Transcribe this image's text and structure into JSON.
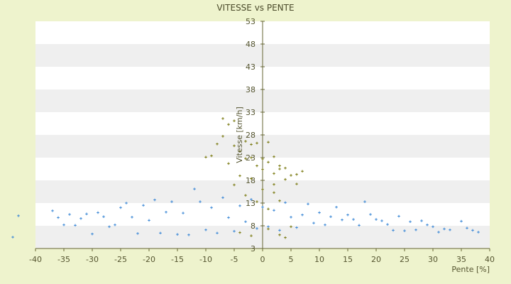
{
  "chart_data": {
    "type": "scatter",
    "title": "VITESSE vs PENTE",
    "xlabel": "Pente [%]",
    "ylabel": "Vitesse [km/h]",
    "xlim": [
      -40,
      40
    ],
    "ylim": [
      3,
      53
    ],
    "x_ticks": [
      -40,
      -35,
      -30,
      -25,
      -20,
      -15,
      -10,
      -5,
      0,
      5,
      10,
      15,
      20,
      25,
      30,
      35,
      40
    ],
    "y_ticks": [
      3,
      8,
      13,
      18,
      23,
      28,
      33,
      38,
      43,
      48,
      53
    ],
    "grid": "horizontal alternating bands",
    "legend": "none",
    "series": [
      {
        "color": "#3a87d6",
        "marker": "plus",
        "points": [
          [
            -44,
            5.5
          ],
          [
            -43,
            10.2
          ],
          [
            -37,
            11.3
          ],
          [
            -36,
            9.8
          ],
          [
            -35,
            8.2
          ],
          [
            -34,
            10.5
          ],
          [
            -33,
            8.1
          ],
          [
            -32,
            9.6
          ],
          [
            -31,
            10.6
          ],
          [
            -30,
            6.2
          ],
          [
            -29,
            10.9
          ],
          [
            -28,
            10.0
          ],
          [
            -27,
            7.8
          ],
          [
            -26,
            8.2
          ],
          [
            -25,
            12.0
          ],
          [
            -24,
            13.0
          ],
          [
            -23,
            9.9
          ],
          [
            -22,
            6.3
          ],
          [
            -21,
            12.5
          ],
          [
            -20,
            9.2
          ],
          [
            -19,
            13.7
          ],
          [
            -18,
            6.4
          ],
          [
            -17,
            11.0
          ],
          [
            -16,
            13.3
          ],
          [
            -15,
            6.1
          ],
          [
            -14,
            10.8
          ],
          [
            -13,
            6.0
          ],
          [
            -12,
            16.1
          ],
          [
            -11,
            13.3
          ],
          [
            -10,
            7.1
          ],
          [
            -9,
            12.0
          ],
          [
            -8,
            6.4
          ],
          [
            -7,
            14.2
          ],
          [
            -6,
            9.8
          ],
          [
            -5,
            6.8
          ],
          [
            -4,
            12.4
          ],
          [
            -3,
            8.9
          ],
          [
            -2,
            13.8
          ],
          [
            -1,
            7.4
          ],
          [
            0,
            12.1
          ],
          [
            1,
            7.8
          ],
          [
            2,
            11.4
          ],
          [
            3,
            7.0
          ],
          [
            4,
            13.1
          ],
          [
            5,
            9.9
          ],
          [
            6,
            7.6
          ],
          [
            7,
            10.4
          ],
          [
            8,
            12.8
          ],
          [
            9,
            8.6
          ],
          [
            10,
            10.9
          ],
          [
            11,
            8.2
          ],
          [
            12,
            10.0
          ],
          [
            13,
            12.1
          ],
          [
            14,
            9.3
          ],
          [
            15,
            10.4
          ],
          [
            16,
            9.4
          ],
          [
            17,
            8.1
          ],
          [
            18,
            13.3
          ],
          [
            19,
            10.5
          ],
          [
            20,
            9.4
          ],
          [
            21,
            9.1
          ],
          [
            22,
            8.3
          ],
          [
            23,
            7.0
          ],
          [
            24,
            10.1
          ],
          [
            25,
            6.9
          ],
          [
            26,
            8.9
          ],
          [
            27,
            7.1
          ],
          [
            28,
            9.1
          ],
          [
            29,
            8.2
          ],
          [
            30,
            7.8
          ],
          [
            31,
            6.6
          ],
          [
            32,
            7.3
          ],
          [
            33,
            7.1
          ],
          [
            35,
            9.0
          ],
          [
            36,
            7.5
          ],
          [
            37,
            7.0
          ],
          [
            38,
            6.6
          ]
        ]
      },
      {
        "color": "#7a7a10",
        "marker": "plus",
        "points": [
          [
            -10,
            23.1
          ],
          [
            -9,
            23.4
          ],
          [
            -8,
            26.0
          ],
          [
            -7,
            27.7
          ],
          [
            -7,
            31.6
          ],
          [
            -6,
            30.3
          ],
          [
            -6,
            21.7
          ],
          [
            -5,
            25.6
          ],
          [
            -5,
            31.1
          ],
          [
            -4,
            24.4
          ],
          [
            -4,
            19.0
          ],
          [
            -3,
            26.6
          ],
          [
            -3,
            22.8
          ],
          [
            -2,
            25.9
          ],
          [
            -2,
            23.0
          ],
          [
            -1,
            21.2
          ],
          [
            -1,
            26.2
          ],
          [
            0,
            22.7
          ],
          [
            0,
            20.4
          ],
          [
            1,
            26.4
          ],
          [
            1,
            22.0
          ],
          [
            2,
            23.2
          ],
          [
            2,
            19.5
          ],
          [
            3,
            20.5
          ],
          [
            3,
            21.2
          ],
          [
            4,
            20.7
          ],
          [
            5,
            19.1
          ],
          [
            6,
            19.3
          ],
          [
            7,
            20.0
          ],
          [
            -3,
            14.7
          ],
          [
            -1,
            13.3
          ],
          [
            0,
            16.0
          ],
          [
            1,
            11.7
          ],
          [
            2,
            15.3
          ],
          [
            3,
            13.5
          ],
          [
            -4,
            6.5
          ],
          [
            -2,
            5.8
          ],
          [
            1,
            7.3
          ],
          [
            3,
            6.0
          ],
          [
            4,
            5.4
          ],
          [
            5,
            7.8
          ],
          [
            6,
            17.2
          ],
          [
            -5,
            17.0
          ],
          [
            -2,
            18.4
          ],
          [
            2,
            17.1
          ],
          [
            4,
            18.2
          ]
        ]
      }
    ]
  }
}
